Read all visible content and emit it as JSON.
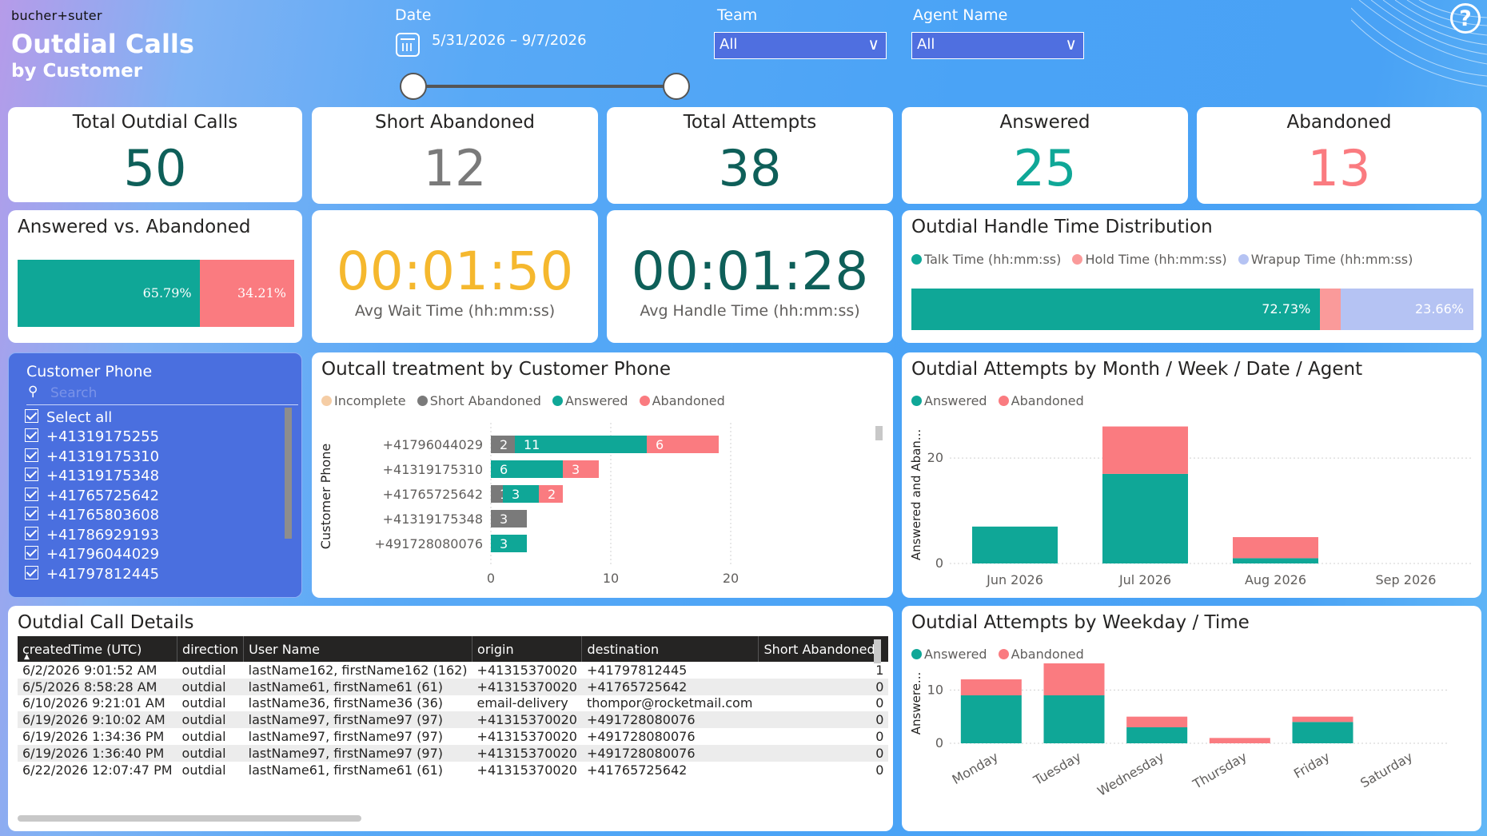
{
  "header": {
    "brand": "bucher+suter",
    "title": "Outdial Calls",
    "subtitle": "by Customer",
    "help_label": "?"
  },
  "filters": {
    "date_label": "Date",
    "date_range": "5/31/2026 – 9/7/2026",
    "team_label": "Team",
    "team_value": "All",
    "agent_label": "Agent Name",
    "agent_value": "All"
  },
  "kpis": {
    "total_outdial_calls": {
      "label": "Total Outdial Calls",
      "value": "50"
    },
    "short_abandoned": {
      "label": "Short Abandoned",
      "value": "12"
    },
    "total_attempts": {
      "label": "Total Attempts",
      "value": "38"
    },
    "answered": {
      "label": "Answered",
      "value": "25"
    },
    "abandoned": {
      "label": "Abandoned",
      "value": "13"
    }
  },
  "avg_wait": {
    "value": "00:01:50",
    "label": "Avg Wait Time (hh:mm:ss)"
  },
  "avg_handle": {
    "value": "00:01:28",
    "label": "Avg Handle Time (hh:mm:ss)"
  },
  "colors": {
    "answered": "#0fa797",
    "abandoned": "#fa7b80",
    "short_abandoned": "#7a7a7a",
    "incomplete": "#f5cda5",
    "talk": "#0fa797",
    "hold": "#fa9a9a",
    "wrapup": "#b5c3f3",
    "wait_time": "#f5b82e",
    "teal_dark": "#0e5f59"
  },
  "answered_vs_abandoned": {
    "title": "Answered vs. Abandoned",
    "answered_pct": 65.79,
    "abandoned_pct": 34.21,
    "answered_label": "65.79%",
    "abandoned_label": "34.21%"
  },
  "handle_time": {
    "title": "Outdial Handle Time Distribution",
    "legend": [
      "Talk Time (hh:mm:ss)",
      "Hold Time (hh:mm:ss)",
      "Wrapup Time (hh:mm:ss)"
    ],
    "talk_pct": 72.73,
    "hold_pct": 3.61,
    "wrapup_pct": 23.66,
    "talk_label": "72.73%",
    "wrapup_label": "23.66%"
  },
  "customer_phone_slicer": {
    "title": "Customer Phone",
    "search_placeholder": "Search",
    "select_all": "Select all",
    "items": [
      "+41319175255",
      "+41319175310",
      "+41319175348",
      "+41765725642",
      "+41765803608",
      "+41786929193",
      "+41796044029",
      "+41797812445"
    ]
  },
  "outcall_treatment": {
    "title": "Outcall treatment by Customer Phone",
    "legend": [
      "Incomplete",
      "Short Abandoned",
      "Answered",
      "Abandoned"
    ],
    "ylabel": "Customer Phone"
  },
  "attempts_month": {
    "title": "Outdial Attempts by Month / Week / Date / Agent",
    "legend": [
      "Answered",
      "Abandoned"
    ],
    "ylabel": "Answered and Aban..."
  },
  "attempts_weekday": {
    "title": "Outdial Attempts by Weekday / Time",
    "legend": [
      "Answered",
      "Abandoned"
    ],
    "ylabel": "Answere..."
  },
  "call_details": {
    "title": "Outdial Call Details",
    "columns": [
      "createdTime (UTC)",
      "direction",
      "User Name",
      "origin",
      "destination",
      "Short Abandoned"
    ],
    "rows": [
      [
        "6/2/2026 9:01:52 AM",
        "outdial",
        "lastName162, firstName162 (162)",
        "+41315370020",
        "+41797812445",
        "1"
      ],
      [
        "6/5/2026 8:58:28 AM",
        "outdial",
        "lastName61, firstName61 (61)",
        "+41315370020",
        "+41765725642",
        "0"
      ],
      [
        "6/10/2026 9:21:01 AM",
        "outdial",
        "lastName36, firstName36 (36)",
        "email-delivery",
        "thompor@rocketmail.com",
        "0"
      ],
      [
        "6/19/2026 9:10:02 AM",
        "outdial",
        "lastName97, firstName97 (97)",
        "+41315370020",
        "+491728080076",
        "0"
      ],
      [
        "6/19/2026 1:34:36 PM",
        "outdial",
        "lastName97, firstName97 (97)",
        "+41315370020",
        "+491728080076",
        "0"
      ],
      [
        "6/19/2026 1:36:40 PM",
        "outdial",
        "lastName97, firstName97 (97)",
        "+41315370020",
        "+491728080076",
        "0"
      ],
      [
        "6/22/2026 12:07:47 PM",
        "outdial",
        "lastName61, firstName61 (61)",
        "+41315370020",
        "+41765725642",
        "0"
      ]
    ]
  },
  "chart_data": [
    {
      "type": "bar",
      "orientation": "horizontal",
      "stacked": true,
      "title": "Outcall treatment by Customer Phone",
      "ylabel": "Customer Phone",
      "categories": [
        "+41796044029",
        "+41319175310",
        "+41765725642",
        "+41319175348",
        "+491728080076"
      ],
      "series": [
        {
          "name": "Incomplete",
          "values": [
            0,
            0,
            0,
            0,
            0
          ]
        },
        {
          "name": "Short Abandoned",
          "values": [
            2,
            0,
            1,
            3,
            0
          ]
        },
        {
          "name": "Answered",
          "values": [
            11,
            6,
            3,
            0,
            3
          ]
        },
        {
          "name": "Abandoned",
          "values": [
            6,
            3,
            2,
            0,
            0
          ]
        }
      ],
      "xlim": [
        0,
        20
      ],
      "xticks": [
        0,
        10,
        20
      ]
    },
    {
      "type": "bar",
      "stacked": true,
      "title": "Outdial Attempts by Month / Week / Date / Agent",
      "ylabel": "Answered and Aban...",
      "categories": [
        "Jun 2026",
        "Jul 2026",
        "Aug 2026",
        "Sep 2026"
      ],
      "series": [
        {
          "name": "Answered",
          "values": [
            7,
            17,
            1,
            0
          ]
        },
        {
          "name": "Abandoned",
          "values": [
            0,
            9,
            4,
            0
          ]
        }
      ],
      "ylim": [
        0,
        27
      ],
      "yticks": [
        0,
        20
      ]
    },
    {
      "type": "bar",
      "stacked": true,
      "title": "Outdial Attempts by Weekday / Time",
      "ylabel": "Answere...",
      "categories": [
        "Monday",
        "Tuesday",
        "Wednesday",
        "Thursday",
        "Friday",
        "Saturday"
      ],
      "series": [
        {
          "name": "Answered",
          "values": [
            9,
            9,
            3,
            0,
            4,
            0
          ]
        },
        {
          "name": "Abandoned",
          "values": [
            3,
            6,
            2,
            1,
            1,
            0
          ]
        }
      ],
      "ylim": [
        0,
        15
      ],
      "yticks": [
        0,
        10
      ]
    }
  ]
}
